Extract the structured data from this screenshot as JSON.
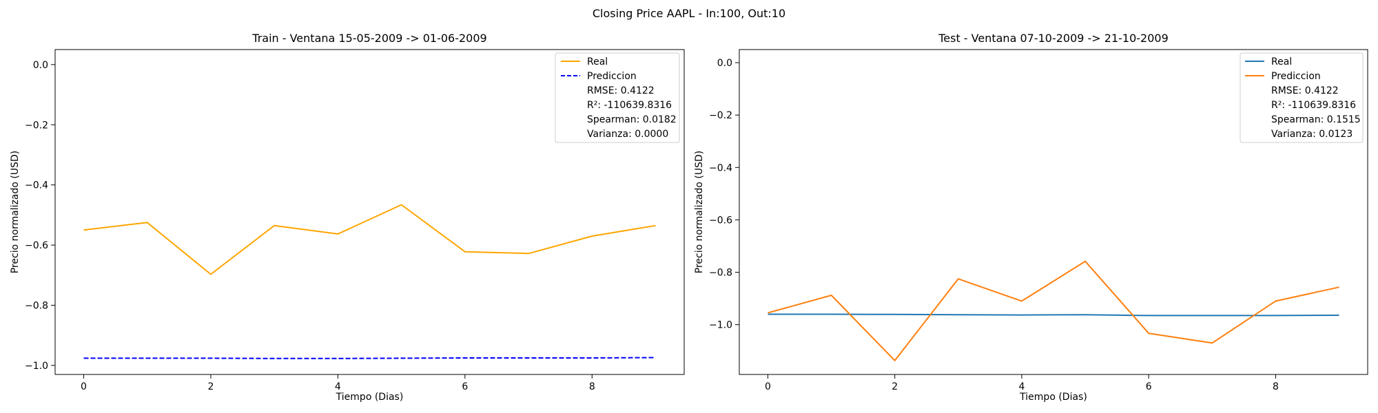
{
  "figure": {
    "suptitle": "Closing Price AAPL - In:100, Out:10"
  },
  "chart_data": [
    {
      "type": "line",
      "title": "Train - Ventana 15-05-2009 -> 01-06-2009",
      "xlabel": "Tiempo (Dias)",
      "ylabel": "Precio normalizado (USD)",
      "xlim": [
        -0.45,
        9.45
      ],
      "ylim": [
        -1.03,
        0.05
      ],
      "xticks": [
        0,
        2,
        4,
        6,
        8
      ],
      "yticks": [
        0.0,
        -0.2,
        -0.4,
        -0.6,
        -0.8,
        -1.0
      ],
      "ytick_labels": [
        "0.0",
        "−0.2",
        "−0.4",
        "−0.6",
        "−0.8",
        "−1.0"
      ],
      "x": [
        0,
        1,
        2,
        3,
        4,
        5,
        6,
        7,
        8,
        9
      ],
      "series": [
        {
          "name": "Real",
          "color": "#ffa500",
          "dash": "solid",
          "values": [
            -0.55,
            -0.525,
            -0.697,
            -0.535,
            -0.563,
            -0.466,
            -0.622,
            -0.628,
            -0.57,
            -0.535
          ]
        },
        {
          "name": "Prediccion",
          "color": "#0000ff",
          "dash": "dashed",
          "values": [
            -0.976,
            -0.976,
            -0.976,
            -0.977,
            -0.977,
            -0.976,
            -0.975,
            -0.975,
            -0.975,
            -0.974
          ]
        }
      ],
      "legend_position": "upper right",
      "legend_extra": [
        "RMSE: 0.4122",
        "R²: -110639.8316",
        "Spearman: 0.0182",
        "Varianza: 0.0000"
      ]
    },
    {
      "type": "line",
      "title": "Test - Ventana 07-10-2009 -> 21-10-2009",
      "xlabel": "Tiempo (Dias)",
      "ylabel": "Precio normalizado (USD)",
      "xlim": [
        -0.45,
        9.45
      ],
      "ylim": [
        -1.19,
        0.05
      ],
      "xticks": [
        0,
        2,
        4,
        6,
        8
      ],
      "yticks": [
        0.0,
        -0.2,
        -0.4,
        -0.6,
        -0.8,
        -1.0
      ],
      "ytick_labels": [
        "0.0",
        "−0.2",
        "−0.4",
        "−0.6",
        "−0.8",
        "−1.0"
      ],
      "x": [
        0,
        1,
        2,
        3,
        4,
        5,
        6,
        7,
        8,
        9
      ],
      "series": [
        {
          "name": "Real",
          "color": "#1f77b4",
          "dash": "solid",
          "values": [
            -0.96,
            -0.96,
            -0.961,
            -0.962,
            -0.963,
            -0.962,
            -0.965,
            -0.965,
            -0.965,
            -0.964
          ]
        },
        {
          "name": "Prediccion",
          "color": "#ff7f0e",
          "dash": "solid",
          "values": [
            -0.955,
            -0.888,
            -1.137,
            -0.825,
            -0.91,
            -0.758,
            -1.033,
            -1.07,
            -0.91,
            -0.857
          ]
        }
      ],
      "legend_position": "upper right",
      "legend_extra": [
        "RMSE: 0.4122",
        "R²: -110639.8316",
        "Spearman: 0.1515",
        "Varianza: 0.0123"
      ]
    }
  ]
}
